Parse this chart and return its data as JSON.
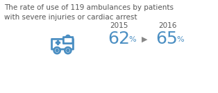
{
  "title_line1": "The rate of use of 119 ambulances by patients",
  "title_line2": "with severe injuries or cardiac arrest",
  "year1": "2015",
  "year2": "2016",
  "value1_big": "62",
  "value1_small": "%",
  "value2_big": "65",
  "value2_small": "%",
  "title_color": "#555555",
  "value_color": "#4a8ec2",
  "year_color": "#555555",
  "arrow_color": "#888888",
  "ambulance_color": "#4a8ec2",
  "background_color": "#ffffff",
  "title_fontsize": 7.5,
  "year_fontsize": 7.5,
  "value_big_fontsize": 18,
  "value_small_fontsize": 8
}
